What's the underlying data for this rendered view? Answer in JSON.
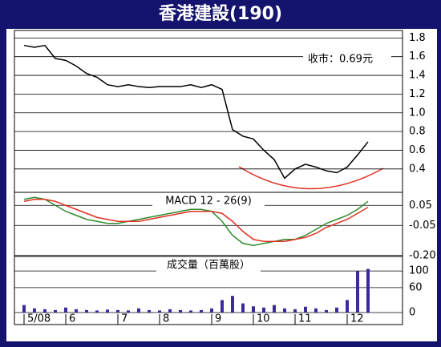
{
  "title": "香港建設(190)",
  "annotation": "收市：0.69元",
  "chart_data": [
    {
      "type": "line",
      "color": "#000000",
      "values": [
        1.72,
        1.7,
        1.72,
        1.58,
        1.56,
        1.5,
        1.42,
        1.38,
        1.3,
        1.28,
        1.3,
        1.28,
        1.27,
        1.28,
        1.28,
        1.28,
        1.3,
        1.27,
        1.3,
        1.25,
        0.82,
        0.75,
        0.72,
        0.6,
        0.5,
        0.3,
        0.4,
        0.45,
        0.42,
        0.38,
        0.36,
        0.42,
        0.55,
        0.69
      ],
      "ylim": [
        0.15,
        1.88
      ],
      "yticks": [
        1.8,
        1.6,
        1.4,
        1.2,
        {
          "value": 1,
          "label": "1.0"
        },
        0.8,
        0.6,
        0.4
      ],
      "grid": true
    },
    {
      "type": "line",
      "title": "MACD 12 - 26(9)",
      "series": [
        {
          "color": "#2e8b2e",
          "values": [
            0.08,
            0.09,
            0.08,
            0.05,
            0.02,
            0,
            -0.02,
            -0.03,
            -0.04,
            -0.04,
            -0.03,
            -0.02,
            -0.01,
            0,
            0.01,
            0.02,
            0.03,
            0.03,
            0.02,
            -0.03,
            -0.1,
            -0.14,
            -0.15,
            -0.14,
            -0.13,
            -0.12,
            -0.12,
            -0.1,
            -0.07,
            -0.04,
            -0.02,
            0,
            0.03,
            0.07
          ]
        },
        {
          "color": "#e03020",
          "values": [
            0.07,
            0.08,
            0.08,
            0.07,
            0.05,
            0.03,
            0.01,
            -0.01,
            -0.02,
            -0.03,
            -0.03,
            -0.03,
            -0.02,
            -0.01,
            0,
            0.01,
            0.02,
            0.02,
            0.02,
            0.01,
            -0.03,
            -0.08,
            -0.12,
            -0.13,
            -0.13,
            -0.13,
            -0.12,
            -0.11,
            -0.09,
            -0.06,
            -0.04,
            -0.02,
            0.01,
            0.04
          ]
        }
      ],
      "ylim": [
        -0.205,
        0.115
      ],
      "yticks": [
        0.05,
        -0.05,
        {
          "value": -0.2,
          "label": "-0.20"
        }
      ],
      "grid": true
    },
    {
      "type": "bar",
      "title": "成交量（百萬股）",
      "color": "#3a2a9a",
      "categories": [
        "5/08",
        null,
        null,
        null,
        "6",
        null,
        null,
        null,
        null,
        "7",
        null,
        null,
        null,
        "8",
        null,
        null,
        null,
        null,
        "9",
        null,
        null,
        null,
        "10",
        null,
        null,
        null,
        "11",
        null,
        null,
        null,
        null,
        "12",
        null,
        null
      ],
      "values": [
        18,
        10,
        8,
        6,
        12,
        8,
        6,
        5,
        7,
        6,
        5,
        10,
        6,
        5,
        8,
        6,
        5,
        6,
        10,
        30,
        40,
        22,
        15,
        12,
        18,
        10,
        8,
        14,
        10,
        6,
        12,
        30,
        100,
        105
      ],
      "ylim": [
        0,
        135
      ],
      "yticks": [
        100,
        60,
        0
      ],
      "grid": true
    }
  ]
}
